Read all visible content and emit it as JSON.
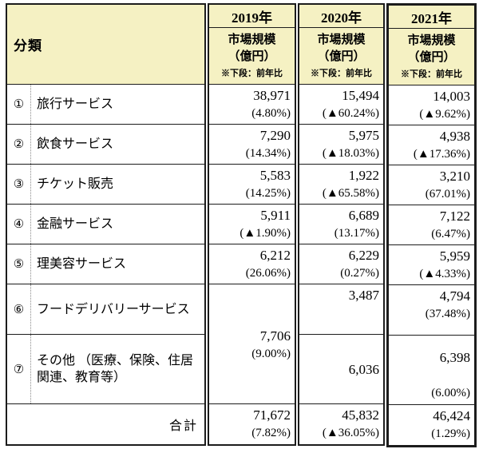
{
  "header": {
    "category": "分類",
    "cols": [
      {
        "year": "2019年",
        "sub1": "市場規模",
        "sub2": "（億円）",
        "note": "※下段：前年比"
      },
      {
        "year": "2020年",
        "sub1": "市場規模",
        "sub2": "（億円）",
        "note": "※下段：前年比"
      },
      {
        "year": "2021年",
        "sub1": "市場規模",
        "sub2": "（億円）",
        "note": "※下段：前年比"
      }
    ]
  },
  "categories": [
    {
      "num": "①",
      "label": "旅行サービス"
    },
    {
      "num": "②",
      "label": "飲食サービス"
    },
    {
      "num": "③",
      "label": "チケット販売"
    },
    {
      "num": "④",
      "label": "金融サービス"
    },
    {
      "num": "⑤",
      "label": "理美容サービス"
    },
    {
      "num": "⑥",
      "label": "フードデリバリーサービス"
    },
    {
      "num": "⑦",
      "label": "その他 （医療、保険、住居関連、教育等）"
    }
  ],
  "total_label": "合計",
  "data": {
    "y2019": {
      "rows": [
        {
          "amount": "38,971",
          "yoy": "(4.80%)"
        },
        {
          "amount": "7,290",
          "yoy": "(14.34%)"
        },
        {
          "amount": "5,583",
          "yoy": "(14.25%)"
        },
        {
          "amount": "5,911",
          "yoy": "(▲1.90%)"
        },
        {
          "amount": "6,212",
          "yoy": "(26.06%)"
        }
      ],
      "merged_r6_r7": {
        "amount": "7,706",
        "yoy": "(9.00%)"
      },
      "total": {
        "amount": "71,672",
        "yoy": "(7.82%)"
      }
    },
    "y2020": {
      "rows": [
        {
          "amount": "15,494",
          "yoy": "(▲60.24%)"
        },
        {
          "amount": "5,975",
          "yoy": "(▲18.03%)"
        },
        {
          "amount": "1,922",
          "yoy": "(▲65.58%)"
        },
        {
          "amount": "6,689",
          "yoy": "(13.17%)"
        },
        {
          "amount": "6,229",
          "yoy": "(0.27%)"
        }
      ],
      "r6": {
        "amount": "3,487",
        "yoy": ""
      },
      "r7": {
        "amount": "6,036",
        "yoy": ""
      },
      "total": {
        "amount": "45,832",
        "yoy": "(▲36.05%)"
      }
    },
    "y2021": {
      "rows": [
        {
          "amount": "14,003",
          "yoy": "(▲9.62%)"
        },
        {
          "amount": "4,938",
          "yoy": "(▲17.36%)"
        },
        {
          "amount": "3,210",
          "yoy": "(67.01%)"
        },
        {
          "amount": "7,122",
          "yoy": "(6.47%)"
        },
        {
          "amount": "5,959",
          "yoy": "(▲4.33%)"
        }
      ],
      "r6": {
        "amount": "4,794",
        "yoy": "(37.48%)"
      },
      "r7": {
        "amount": "6,398",
        "yoy": "(6.00%)"
      },
      "total": {
        "amount": "46,424",
        "yoy": "(1.29%)"
      }
    }
  },
  "colors": {
    "header_bg": "#f5f1c3",
    "border": "#1c1c1c",
    "negative_marker": "▲"
  },
  "chart_data": {
    "type": "table",
    "title": "市場規模（億円） ※下段：前年比",
    "row_labels": [
      "旅行サービス",
      "飲食サービス",
      "チケット販売",
      "金融サービス",
      "理美容サービス",
      "フードデリバリーサービス",
      "その他（医療、保険、住居関連、教育等）",
      "合計"
    ],
    "columns": [
      "2019年",
      "2020年",
      "2021年"
    ],
    "values_oku_yen": [
      [
        38971,
        15494,
        14003
      ],
      [
        7290,
        5975,
        4938
      ],
      [
        5583,
        1922,
        3210
      ],
      [
        5911,
        6689,
        7122
      ],
      [
        6212,
        6229,
        5959
      ],
      [
        null,
        3487,
        4794
      ],
      [
        7706,
        6036,
        6398
      ],
      [
        71672,
        45832,
        46424
      ]
    ],
    "yoy_percent": [
      [
        4.8,
        -60.24,
        -9.62
      ],
      [
        14.34,
        -18.03,
        -17.36
      ],
      [
        14.25,
        -65.58,
        67.01
      ],
      [
        -1.9,
        13.17,
        6.47
      ],
      [
        26.06,
        0.27,
        -4.33
      ],
      [
        null,
        null,
        37.48
      ],
      [
        9.0,
        null,
        6.0
      ],
      [
        7.82,
        -36.05,
        1.29
      ]
    ],
    "notes": "2019年のフードデリバリーサービスはその他と合算（7,706億円・前年比9.00%）で表示されている"
  }
}
